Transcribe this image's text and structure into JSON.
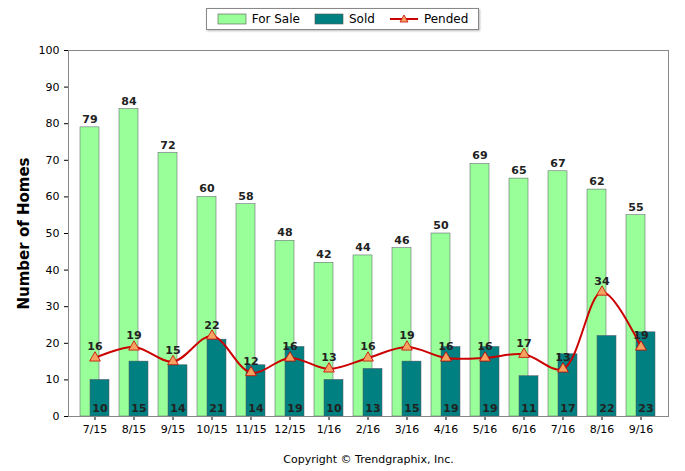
{
  "chart_data": {
    "type": "bar",
    "categories": [
      "7/15",
      "8/15",
      "9/15",
      "10/15",
      "11/15",
      "12/15",
      "1/16",
      "2/16",
      "3/16",
      "4/16",
      "5/16",
      "6/16",
      "7/16",
      "8/16",
      "9/16"
    ],
    "series": [
      {
        "name": "For Sale",
        "type": "bar",
        "color": "#99ff99",
        "values": [
          79,
          84,
          72,
          60,
          58,
          48,
          42,
          44,
          46,
          50,
          69,
          65,
          67,
          62,
          55
        ]
      },
      {
        "name": "Sold",
        "type": "bar",
        "color": "#008080",
        "values": [
          10,
          15,
          14,
          21,
          14,
          19,
          10,
          13,
          15,
          19,
          19,
          11,
          17,
          22,
          23
        ]
      },
      {
        "name": "Pended",
        "type": "line",
        "color": "#cc0000",
        "marker": "triangle",
        "values": [
          16,
          19,
          15,
          22,
          12,
          16,
          13,
          16,
          19,
          16,
          16,
          17,
          13,
          34,
          19
        ]
      }
    ],
    "y_label": "Number of Homes",
    "x_label": "Copyright © Trendgraphix, Inc.",
    "ylim": [
      0,
      100
    ],
    "yticks": [
      0,
      10,
      20,
      30,
      40,
      50,
      60,
      70,
      80,
      90,
      100
    ],
    "grid": false,
    "legend": "top",
    "data_labels": true
  }
}
